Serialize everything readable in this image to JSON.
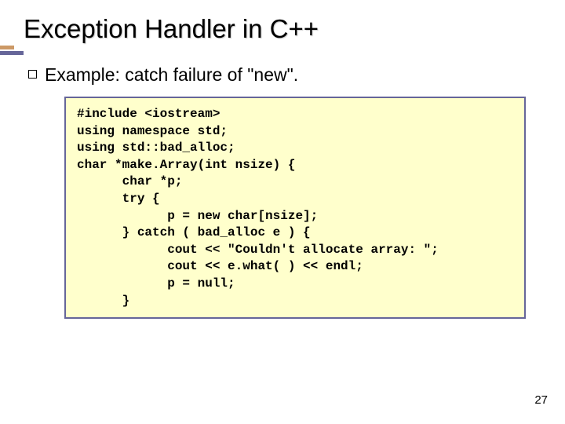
{
  "accent": {
    "short_color": "#cc9966",
    "long_color": "#666699"
  },
  "title": "Exception Handler in C++",
  "subtitle": "Example: catch failure of \"new\".",
  "code_box": {
    "background": "#ffffcc",
    "border_color": "#666699",
    "lines": [
      "#include <iostream>",
      "using namespace std;",
      "using std::bad_alloc;",
      "char *make.Array(int nsize) {",
      "      char *p;",
      "      try {",
      "            p = new char[nsize];",
      "      } catch ( bad_alloc e ) {",
      "            cout << \"Couldn't allocate array: \";",
      "            cout << e.what( ) << endl;",
      "            p = null;",
      "      }"
    ]
  },
  "page_number": "27"
}
